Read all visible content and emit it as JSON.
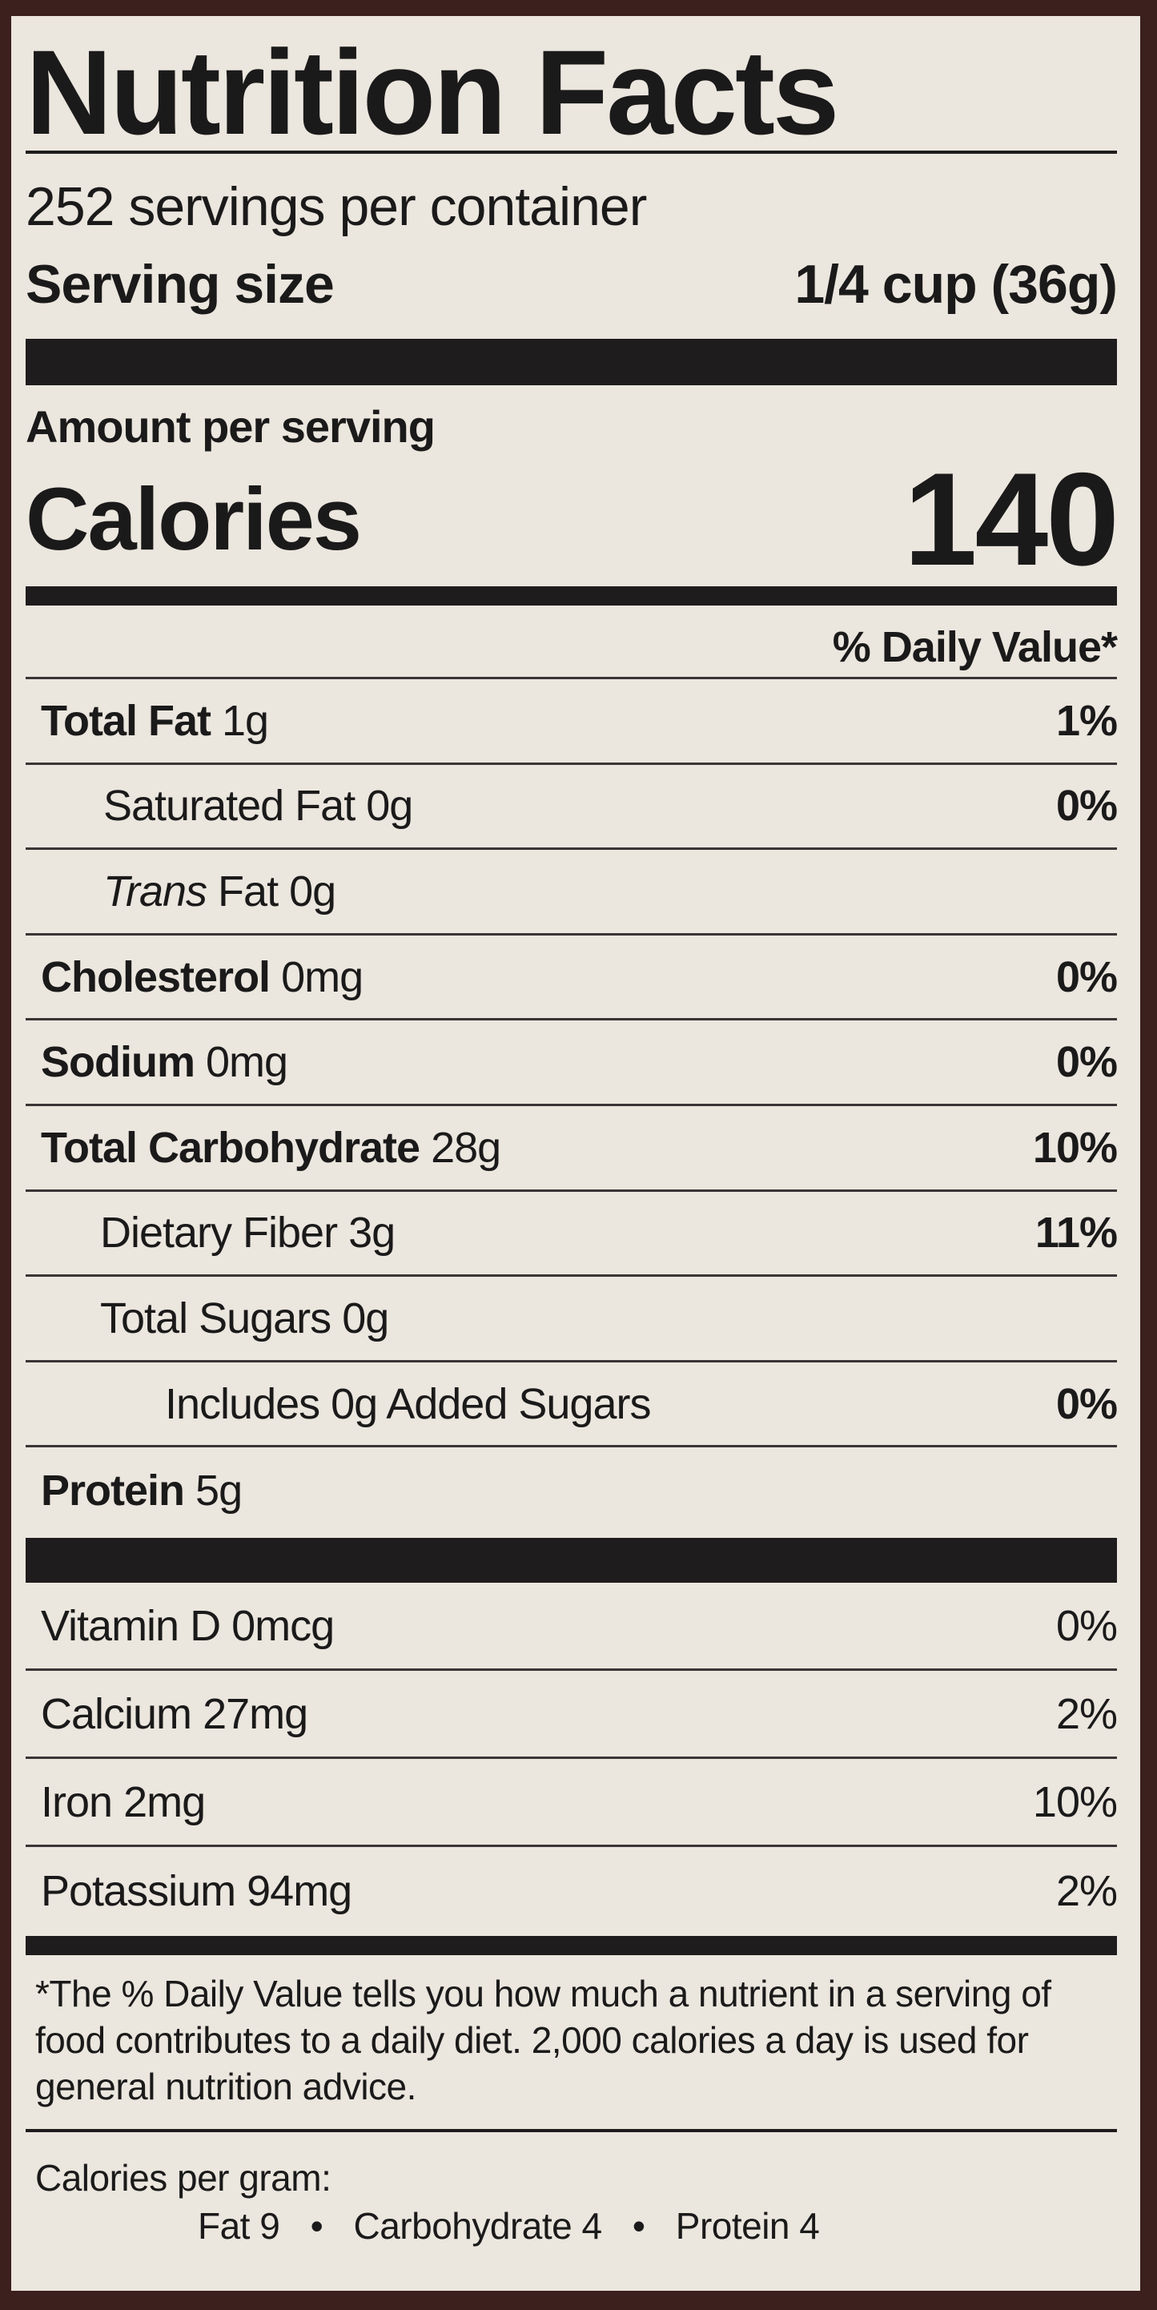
{
  "title": "Nutrition Facts",
  "servings_per_container": "252 servings per container",
  "serving_size_label": "Serving size",
  "serving_size_value": "1/4 cup (36g)",
  "amount_per_serving": "Amount per serving",
  "calories_label": "Calories",
  "calories_value": "140",
  "daily_value_header": "% Daily Value*",
  "nutrients": [
    {
      "name": "Total Fat",
      "amount": "1g",
      "dv": "1%"
    },
    {
      "name": "Saturated Fat",
      "amount": "0g",
      "dv": "0%"
    },
    {
      "name": "Trans",
      "name_suffix": "Fat",
      "amount": "0g",
      "dv": ""
    },
    {
      "name": "Cholesterol",
      "amount": "0mg",
      "dv": "0%"
    },
    {
      "name": "Sodium",
      "amount": "0mg",
      "dv": "0%"
    },
    {
      "name": "Total Carbohydrate",
      "amount": "28g",
      "dv": "10%"
    },
    {
      "name": "Dietary Fiber",
      "amount": "3g",
      "dv": "11%"
    },
    {
      "name": "Total Sugars",
      "amount": "0g",
      "dv": ""
    },
    {
      "name": "Includes 0g Added Sugars",
      "amount": "",
      "dv": "0%"
    },
    {
      "name": "Protein",
      "amount": "5g",
      "dv": ""
    }
  ],
  "vitamins": [
    {
      "name": "Vitamin D",
      "amount": "0mcg",
      "dv": "0%"
    },
    {
      "name": "Calcium",
      "amount": "27mg",
      "dv": "2%"
    },
    {
      "name": "Iron",
      "amount": "2mg",
      "dv": "10%"
    },
    {
      "name": "Potassium",
      "amount": "94mg",
      "dv": "2%"
    }
  ],
  "footnote": "*The % Daily Value tells you how much a nutrient in a serving of food contributes to a daily diet. 2,000 calories a day is used for general nutrition advice.",
  "calories_per_gram": {
    "label": "Calories per gram:",
    "fat": "Fat 9",
    "carbohydrate": "Carbohydrate 4",
    "protein": "Protein 4",
    "separator": "•"
  }
}
